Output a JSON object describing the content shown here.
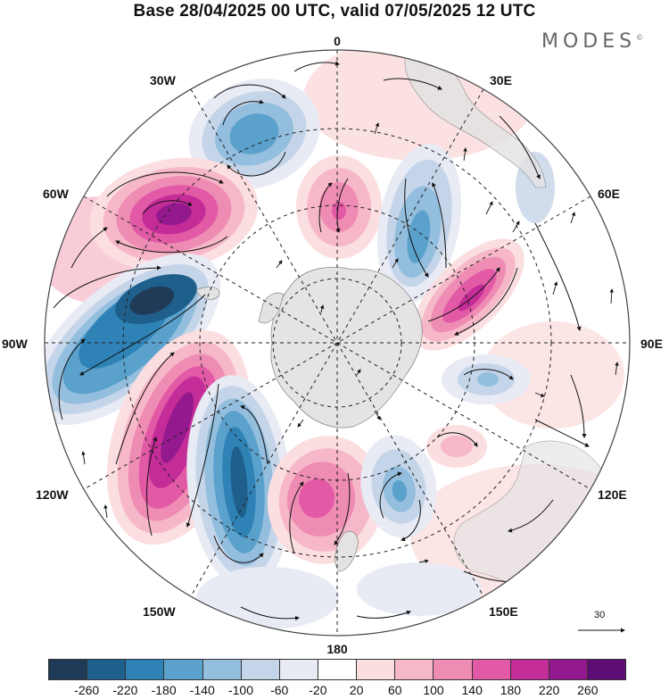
{
  "title": "Base 28/04/2025 00 UTC, valid 07/05/2025 12 UTC",
  "logo": "MODES",
  "logo_mark": "©",
  "longitude_labels": {
    "top": "0",
    "bottom": "180",
    "left": "90W",
    "right": "90E",
    "ul1": "30W",
    "ul2": "60W",
    "ur1": "30E",
    "ur2": "60E",
    "ll1": "120W",
    "ll2": "150W",
    "lr1": "120E",
    "lr2": "150E"
  },
  "vector_scale_label": "30",
  "colorbar": {
    "colors": [
      "#1f3b57",
      "#1e5f8c",
      "#2e82b5",
      "#5aa1cc",
      "#93bedd",
      "#c5d5e9",
      "#e8eaf4",
      "#ffffff",
      "#fbdedf",
      "#f6b8c8",
      "#ef8cb4",
      "#e25aa6",
      "#c42c98",
      "#94198e",
      "#5e0d74"
    ],
    "ticks": [
      "-260",
      "-220",
      "-180",
      "-140",
      "-100",
      "-60",
      "-20",
      "20",
      "60",
      "100",
      "140",
      "180",
      "220",
      "260"
    ]
  }
}
